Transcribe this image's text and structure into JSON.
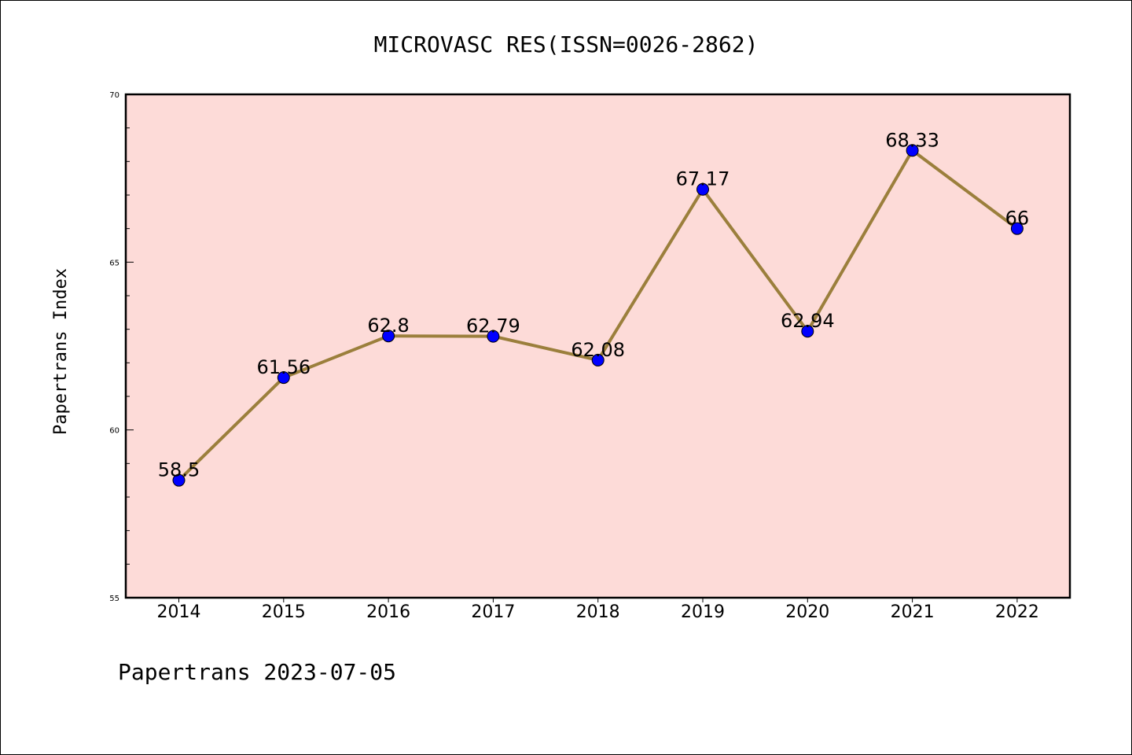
{
  "chart_data": {
    "type": "line",
    "title": "MICROVASC RES(ISSN=0026-2862)",
    "ylabel": "Papertrans Index",
    "xlabel": "",
    "categories": [
      "2014",
      "2015",
      "2016",
      "2017",
      "2018",
      "2019",
      "2020",
      "2021",
      "2022"
    ],
    "values": [
      58.5,
      61.56,
      62.8,
      62.79,
      62.08,
      67.17,
      62.94,
      68.33,
      66
    ],
    "data_labels": [
      "58.5",
      "61.56",
      "62.8",
      "62.79",
      "62.08",
      "67.17",
      "62.94",
      "68.33",
      "66"
    ],
    "ylim": [
      55,
      70
    ],
    "yticks": [
      "55",
      "60",
      "65",
      "70"
    ],
    "grid": false,
    "colors": {
      "plot_background": "#fddbd8",
      "line": "#9b7f3c",
      "marker": "#0000ff"
    }
  },
  "footer": {
    "text": "Papertrans 2023-07-05"
  }
}
